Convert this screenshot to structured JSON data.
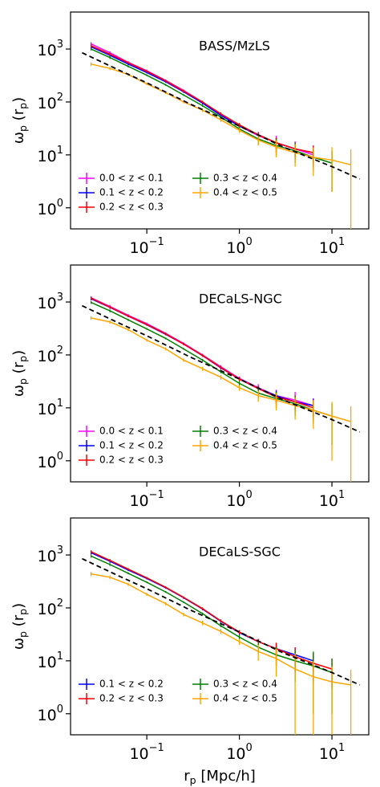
{
  "chart_data": [
    {
      "type": "line",
      "title": "BASS/MzLS",
      "ylabel": [
        "ω",
        "p",
        " (r",
        "p",
        ")"
      ],
      "xlim": [
        0.015,
        25
      ],
      "ylim": [
        0.4,
        5000
      ],
      "xticks": [
        {
          "value": 0.1,
          "label": "10",
          "exponent": "−1"
        },
        {
          "value": 1,
          "label": "10",
          "exponent": "0"
        },
        {
          "value": 10,
          "label": "10",
          "exponent": "1"
        }
      ],
      "yticks": [
        {
          "value": 1,
          "label": "10",
          "exponent": "0"
        },
        {
          "value": 10,
          "label": "10",
          "exponent": "1"
        },
        {
          "value": 100,
          "label": "10",
          "exponent": "2"
        },
        {
          "value": 1000,
          "label": "10",
          "exponent": "3"
        }
      ],
      "x": [
        0.025,
        0.04,
        0.063,
        0.1,
        0.16,
        0.25,
        0.4,
        0.63,
        1.0,
        1.6,
        2.5,
        4.0,
        6.3,
        10,
        16
      ],
      "series": [
        {
          "name": "0.0 < z < 0.1",
          "color": "#ff00ff",
          "values": [
            1250,
            850,
            560,
            390,
            255,
            165,
            100,
            58,
            35,
            23,
            17,
            13,
            10,
            null,
            null
          ],
          "errors": [
            100,
            60,
            30,
            20,
            12,
            8,
            5,
            4,
            3,
            4,
            6,
            5,
            4,
            null,
            null
          ]
        },
        {
          "name": "0.1 < z < 0.2",
          "color": "#0000ff",
          "values": [
            1100,
            760,
            520,
            360,
            240,
            155,
            95,
            56,
            35,
            24,
            17,
            13,
            11,
            null,
            null
          ],
          "errors": [
            80,
            50,
            25,
            15,
            10,
            7,
            5,
            4,
            3,
            3,
            4,
            4,
            4,
            null,
            null
          ]
        },
        {
          "name": "0.2 < z < 0.3",
          "color": "#ff0000",
          "values": [
            1150,
            800,
            550,
            380,
            250,
            160,
            100,
            60,
            37,
            24,
            17,
            13,
            11,
            null,
            null
          ],
          "errors": [
            80,
            50,
            25,
            15,
            10,
            7,
            5,
            4,
            3,
            3,
            4,
            4,
            4,
            null,
            null
          ]
        },
        {
          "name": "0.3 < z < 0.4",
          "color": "#008000",
          "values": [
            1000,
            690,
            470,
            320,
            210,
            135,
            85,
            52,
            31,
            20,
            15,
            12,
            9,
            7,
            null
          ],
          "errors": [
            60,
            40,
            20,
            12,
            8,
            5,
            4,
            3,
            3,
            4,
            5,
            5,
            4,
            5,
            null
          ]
        },
        {
          "name": "0.4 < z < 0.5",
          "color": "#ffa500",
          "values": [
            520,
            430,
            330,
            220,
            150,
            100,
            70,
            46,
            29,
            19,
            14,
            11,
            9,
            8,
            6.5
          ],
          "errors": [
            40,
            30,
            20,
            12,
            8,
            6,
            5,
            4,
            3,
            4,
            5,
            5,
            5,
            6,
            6.2
          ]
        }
      ],
      "model": {
        "color": "#000000",
        "dashed": true,
        "x": [
          0.02,
          0.05,
          0.1,
          0.3,
          1,
          3,
          10,
          20
        ],
        "values": [
          850,
          400,
          230,
          90,
          35,
          14,
          6,
          3.5
        ]
      }
    },
    {
      "type": "line",
      "title": "DECaLS-NGC",
      "ylabel": [
        "ω",
        "p",
        " (r",
        "p",
        ")"
      ],
      "xlim": [
        0.015,
        25
      ],
      "ylim": [
        0.4,
        5000
      ],
      "xticks": [
        {
          "value": 0.1,
          "label": "10",
          "exponent": "−1"
        },
        {
          "value": 1,
          "label": "10",
          "exponent": "0"
        },
        {
          "value": 10,
          "label": "10",
          "exponent": "1"
        }
      ],
      "yticks": [
        {
          "value": 1,
          "label": "10",
          "exponent": "0"
        },
        {
          "value": 10,
          "label": "10",
          "exponent": "1"
        },
        {
          "value": 100,
          "label": "10",
          "exponent": "2"
        },
        {
          "value": 1000,
          "label": "10",
          "exponent": "3"
        }
      ],
      "x": [
        0.025,
        0.04,
        0.063,
        0.1,
        0.16,
        0.25,
        0.4,
        0.63,
        1.0,
        1.6,
        2.5,
        4.0,
        6.3,
        10,
        16
      ],
      "series": [
        {
          "name": "0.0 < z < 0.1",
          "color": "#ff00ff",
          "values": [
            1200,
            820,
            560,
            390,
            255,
            165,
            100,
            60,
            36,
            24,
            17,
            14,
            11,
            null,
            null
          ],
          "errors": [
            90,
            60,
            30,
            20,
            12,
            8,
            5,
            4,
            3,
            4,
            5,
            6,
            4,
            null,
            null
          ]
        },
        {
          "name": "0.1 < z < 0.2",
          "color": "#0000ff",
          "values": [
            1150,
            790,
            540,
            370,
            245,
            160,
            97,
            57,
            35,
            23,
            17,
            13,
            11,
            null,
            null
          ],
          "errors": [
            80,
            50,
            25,
            15,
            10,
            7,
            5,
            4,
            3,
            3,
            4,
            4,
            4,
            null,
            null
          ]
        },
        {
          "name": "0.2 < z < 0.3",
          "color": "#ff0000",
          "values": [
            1180,
            800,
            545,
            375,
            250,
            160,
            98,
            58,
            35,
            23,
            16,
            13,
            10,
            null,
            null
          ],
          "errors": [
            80,
            50,
            25,
            15,
            10,
            7,
            5,
            4,
            3,
            3,
            4,
            4,
            4,
            null,
            null
          ]
        },
        {
          "name": "0.3 < z < 0.4",
          "color": "#008000",
          "values": [
            980,
            680,
            460,
            310,
            205,
            130,
            80,
            48,
            29,
            19,
            15,
            12,
            9,
            7,
            null
          ],
          "errors": [
            60,
            40,
            20,
            12,
            8,
            5,
            4,
            3,
            3,
            4,
            5,
            5,
            4,
            5,
            null
          ]
        },
        {
          "name": "0.4 < z < 0.5",
          "color": "#ffa500",
          "values": [
            500,
            420,
            300,
            190,
            130,
            80,
            55,
            38,
            24,
            17,
            14,
            11,
            9,
            7,
            5.5
          ],
          "errors": [
            40,
            30,
            20,
            12,
            8,
            6,
            5,
            4,
            3,
            4,
            5,
            5,
            5,
            6,
            5.2
          ]
        }
      ],
      "model": {
        "color": "#000000",
        "dashed": true,
        "x": [
          0.02,
          0.05,
          0.1,
          0.3,
          1,
          3,
          10,
          20
        ],
        "values": [
          850,
          400,
          230,
          90,
          35,
          14,
          6,
          3.5
        ]
      }
    },
    {
      "type": "line",
      "title": "DECaLS-SGC",
      "ylabel": [
        "ω",
        "p",
        " (r",
        "p",
        ")"
      ],
      "xlabel": [
        "r",
        "p",
        " [Mpc/h]"
      ],
      "xlim": [
        0.015,
        25
      ],
      "ylim": [
        0.4,
        5000
      ],
      "xticks": [
        {
          "value": 0.1,
          "label": "10",
          "exponent": "−1"
        },
        {
          "value": 1,
          "label": "10",
          "exponent": "0"
        },
        {
          "value": 10,
          "label": "10",
          "exponent": "1"
        }
      ],
      "yticks": [
        {
          "value": 1,
          "label": "10",
          "exponent": "0"
        },
        {
          "value": 10,
          "label": "10",
          "exponent": "1"
        },
        {
          "value": 100,
          "label": "10",
          "exponent": "2"
        },
        {
          "value": 1000,
          "label": "10",
          "exponent": "3"
        }
      ],
      "x": [
        0.025,
        0.04,
        0.063,
        0.1,
        0.16,
        0.25,
        0.4,
        0.63,
        1.0,
        1.6,
        2.5,
        4.0,
        6.3,
        10,
        16
      ],
      "series": [
        {
          "name": "0.1 < z < 0.2",
          "color": "#0000ff",
          "values": [
            1100,
            760,
            520,
            360,
            240,
            155,
            95,
            56,
            34,
            23,
            17,
            13,
            10,
            null,
            null
          ],
          "errors": [
            80,
            50,
            25,
            15,
            10,
            7,
            5,
            4,
            3,
            3,
            4,
            5,
            4,
            null,
            null
          ]
        },
        {
          "name": "0.2 < z < 0.3",
          "color": "#ff0000",
          "values": [
            1150,
            790,
            540,
            370,
            245,
            158,
            97,
            57,
            35,
            23,
            17,
            12,
            9,
            7,
            null
          ],
          "errors": [
            80,
            50,
            25,
            15,
            10,
            7,
            5,
            4,
            3,
            3,
            5,
            6,
            5,
            4,
            null
          ]
        },
        {
          "name": "0.3 < z < 0.4",
          "color": "#008000",
          "values": [
            950,
            660,
            450,
            305,
            200,
            128,
            78,
            46,
            28,
            18,
            13,
            10,
            8,
            6,
            null
          ],
          "errors": [
            60,
            40,
            20,
            12,
            8,
            5,
            4,
            3,
            3,
            4,
            5,
            6,
            7,
            5,
            null
          ]
        },
        {
          "name": "0.4 < z < 0.5",
          "color": "#ffa500",
          "values": [
            440,
            380,
            280,
            180,
            120,
            75,
            52,
            36,
            23,
            15,
            11,
            7,
            5,
            4,
            3.5
          ],
          "errors": [
            40,
            30,
            20,
            12,
            8,
            6,
            5,
            4,
            3,
            5,
            6,
            6.8,
            4.8,
            3.8,
            3.3
          ]
        }
      ],
      "model": {
        "color": "#000000",
        "dashed": true,
        "x": [
          0.02,
          0.05,
          0.1,
          0.3,
          1,
          3,
          10,
          20
        ],
        "values": [
          850,
          400,
          230,
          90,
          35,
          14,
          6,
          3.5
        ]
      }
    }
  ]
}
